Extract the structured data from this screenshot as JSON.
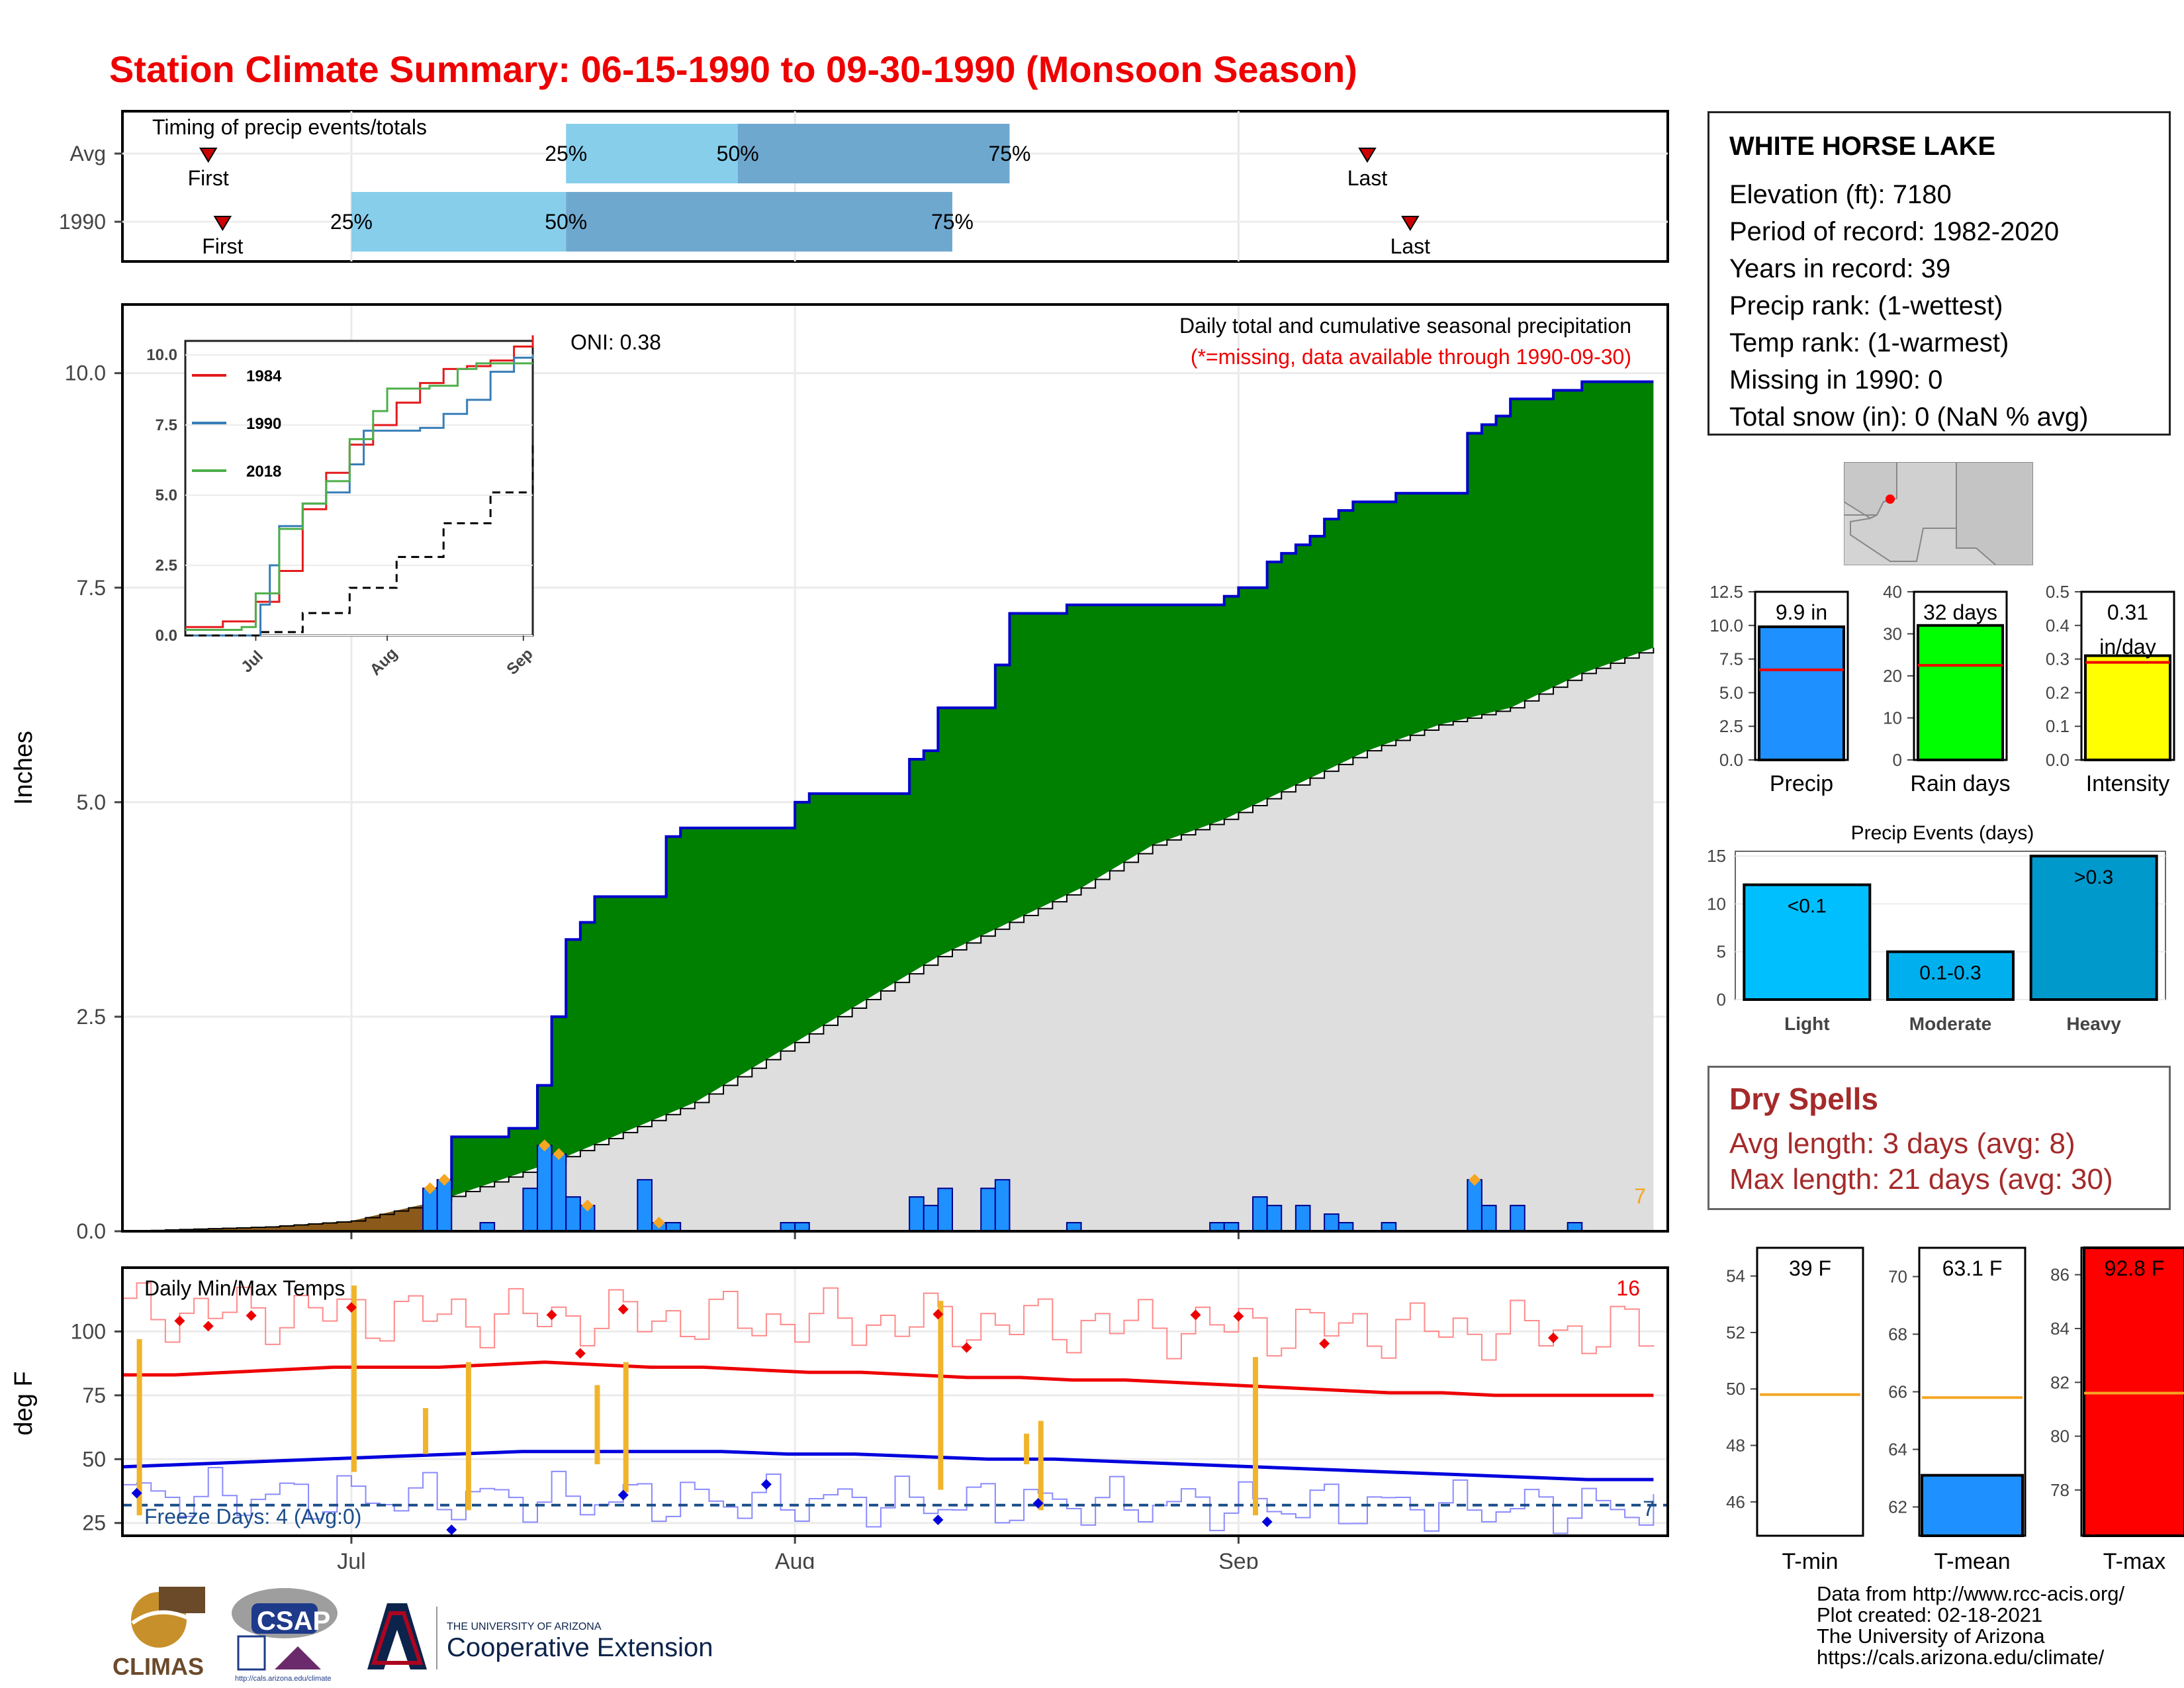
{
  "title": "Station Climate Summary: 06-15-1990 to 09-30-1990 (Monsoon Season)",
  "station": {
    "name": "WHITE HORSE LAKE",
    "lines": [
      "Elevation (ft): 7180",
      "Period of record: 1982-2020",
      "Years in record: 39",
      "Precip rank:  (1-wettest)",
      "Temp rank:  (1-warmest)",
      "Missing in 1990: 0",
      "Total snow (in): 0 (NaN % avg)"
    ]
  },
  "timing": {
    "title": "Timing of precip events/totals",
    "rows": [
      {
        "label": "Avg",
        "first_day": 6,
        "last_day": 87,
        "p25": 31,
        "p50": 43,
        "p75": 62,
        "first_label": "First",
        "last_label": "Last",
        "q25_label": "25%",
        "q50_label": "50%",
        "q75_label": "75%"
      },
      {
        "label": "1990",
        "first_day": 7,
        "last_day": 90,
        "p25": 16,
        "p50": 31,
        "p75": 58,
        "first_label": "First",
        "last_label": "Last",
        "q25_label": "25%",
        "q50_label": "50%",
        "q75_label": "75%"
      }
    ]
  },
  "main_panel": {
    "subtitle": "Daily total and cumulative seasonal precipitation",
    "missing_note": "(*=missing, data available through 1990-09-30)",
    "oni_label": "ONI: 0.38",
    "ylabel": "Inches",
    "corner_count": "7",
    "month_labels": [
      "Jul",
      "Aug",
      "Sep"
    ],
    "month_days": [
      16,
      47,
      78
    ],
    "days_total": 108
  },
  "inset": {
    "legend": [
      "1984",
      "1990",
      "2018"
    ],
    "month_labels": [
      "Jul",
      "Aug",
      "Sep"
    ],
    "yticks": [
      "0.0",
      "2.5",
      "5.0",
      "7.5",
      "10.0"
    ]
  },
  "temp_panel": {
    "title": "Daily Min/Max Temps",
    "ylabel": "deg F",
    "freeze_label": "Freeze Days: 4 (Avg:0)",
    "count_hot": "16",
    "count_cold": "7"
  },
  "chart_data": [
    {
      "type": "area",
      "title": "Daily total and cumulative seasonal precipitation",
      "ylabel": "Inches",
      "ylim": [
        0,
        10.8
      ],
      "x_start": "1990-06-15",
      "series": [
        {
          "name": "cumulative_1990",
          "points": [
            [
              0,
              0
            ],
            [
              21,
              0
            ],
            [
              22,
              0.5
            ],
            [
              23,
              1.1
            ],
            [
              26,
              1.1
            ],
            [
              27,
              1.2
            ],
            [
              28,
              1.2
            ],
            [
              29,
              1.7
            ],
            [
              30,
              2.5
            ],
            [
              31,
              3.4
            ],
            [
              32,
              3.6
            ],
            [
              33,
              3.9
            ],
            [
              37,
              3.9
            ],
            [
              38,
              4.6
            ],
            [
              39,
              4.7
            ],
            [
              46,
              4.7
            ],
            [
              47,
              5.0
            ],
            [
              48,
              5.1
            ],
            [
              54,
              5.1
            ],
            [
              55,
              5.5
            ],
            [
              56,
              5.6
            ],
            [
              57,
              6.1
            ],
            [
              60,
              6.1
            ],
            [
              61,
              6.6
            ],
            [
              62,
              7.2
            ],
            [
              65,
              7.2
            ],
            [
              66,
              7.3
            ],
            [
              76,
              7.3
            ],
            [
              77,
              7.4
            ],
            [
              78,
              7.5
            ],
            [
              79,
              7.5
            ],
            [
              80,
              7.8
            ],
            [
              81,
              7.9
            ],
            [
              82,
              8.0
            ],
            [
              83,
              8.1
            ],
            [
              84,
              8.3
            ],
            [
              85,
              8.4
            ],
            [
              86,
              8.5
            ],
            [
              87,
              8.5
            ],
            [
              88,
              8.5
            ],
            [
              89,
              8.6
            ],
            [
              93,
              8.6
            ],
            [
              94,
              9.3
            ],
            [
              95,
              9.4
            ],
            [
              96,
              9.5
            ],
            [
              97,
              9.7
            ],
            [
              100,
              9.8
            ],
            [
              101,
              9.8
            ],
            [
              102,
              9.9
            ],
            [
              107,
              9.9
            ]
          ]
        },
        {
          "name": "average",
          "points": [
            [
              0,
              0
            ],
            [
              10,
              0.05
            ],
            [
              16,
              0.12
            ],
            [
              22,
              0.35
            ],
            [
              30,
              0.8
            ],
            [
              40,
              1.5
            ],
            [
              47,
              2.2
            ],
            [
              52,
              2.7
            ],
            [
              57,
              3.2
            ],
            [
              62,
              3.6
            ],
            [
              67,
              4.0
            ],
            [
              72,
              4.5
            ],
            [
              77,
              4.8
            ],
            [
              82,
              5.2
            ],
            [
              87,
              5.6
            ],
            [
              92,
              5.9
            ],
            [
              97,
              6.1
            ],
            [
              102,
              6.5
            ],
            [
              107,
              6.8
            ]
          ]
        }
      ],
      "daily_bars": [
        [
          21,
          0.5
        ],
        [
          22,
          0.6
        ],
        [
          25,
          0.1
        ],
        [
          28,
          0.5
        ],
        [
          29,
          1.0
        ],
        [
          30,
          0.9
        ],
        [
          31,
          0.4
        ],
        [
          32,
          0.3
        ],
        [
          36,
          0.6
        ],
        [
          37,
          0.1
        ],
        [
          38,
          0.1
        ],
        [
          46,
          0.1
        ],
        [
          47,
          0.1
        ],
        [
          55,
          0.4
        ],
        [
          56,
          0.3
        ],
        [
          57,
          0.5
        ],
        [
          60,
          0.5
        ],
        [
          61,
          0.6
        ],
        [
          66,
          0.1
        ],
        [
          76,
          0.1
        ],
        [
          77,
          0.1
        ],
        [
          79,
          0.4
        ],
        [
          80,
          0.3
        ],
        [
          82,
          0.3
        ],
        [
          84,
          0.2
        ],
        [
          85,
          0.1
        ],
        [
          88,
          0.1
        ],
        [
          94,
          0.6
        ],
        [
          95,
          0.3
        ],
        [
          97,
          0.3
        ],
        [
          101,
          0.1
        ]
      ],
      "max_markers": [
        21,
        22,
        29,
        30,
        32,
        37,
        94
      ]
    },
    {
      "type": "line",
      "title": "",
      "xlabel": "",
      "ylabel": "",
      "x_months": [
        "Jul",
        "Aug",
        "Sep"
      ],
      "ylim": [
        0,
        10.5
      ],
      "series": [
        {
          "name": "1984",
          "color": "#e41a1c",
          "points": [
            [
              0,
              0.3
            ],
            [
              8,
              0.5
            ],
            [
              15,
              1.2
            ],
            [
              20,
              2.3
            ],
            [
              25,
              4.5
            ],
            [
              30,
              5.8
            ],
            [
              35,
              6.8
            ],
            [
              40,
              7.5
            ],
            [
              45,
              8.3
            ],
            [
              50,
              9.0
            ],
            [
              55,
              9.5
            ],
            [
              60,
              9.6
            ],
            [
              65,
              9.8
            ],
            [
              70,
              10.3
            ],
            [
              74,
              10.7
            ]
          ]
        },
        {
          "name": "1990",
          "color": "#377eb8",
          "points": [
            [
              0,
              0
            ],
            [
              13,
              0
            ],
            [
              16,
              1.1
            ],
            [
              18,
              2.5
            ],
            [
              20,
              3.9
            ],
            [
              25,
              4.7
            ],
            [
              30,
              5.1
            ],
            [
              35,
              6.1
            ],
            [
              38,
              7.3
            ],
            [
              50,
              7.4
            ],
            [
              55,
              7.9
            ],
            [
              60,
              8.4
            ],
            [
              65,
              9.4
            ],
            [
              70,
              9.9
            ],
            [
              74,
              10.0
            ]
          ]
        },
        {
          "name": "2018",
          "color": "#4daf4a",
          "points": [
            [
              0,
              0.2
            ],
            [
              12,
              0.3
            ],
            [
              15,
              1.5
            ],
            [
              20,
              3.8
            ],
            [
              25,
              4.7
            ],
            [
              30,
              5.5
            ],
            [
              35,
              7.0
            ],
            [
              40,
              8.0
            ],
            [
              43,
              8.8
            ],
            [
              48,
              8.8
            ],
            [
              52,
              8.9
            ],
            [
              58,
              9.5
            ],
            [
              62,
              9.7
            ],
            [
              74,
              9.7
            ]
          ]
        },
        {
          "name": "average",
          "color": "#000000",
          "points": [
            [
              0,
              0
            ],
            [
              16,
              0.12
            ],
            [
              25,
              0.8
            ],
            [
              35,
              1.7
            ],
            [
              45,
              2.8
            ],
            [
              55,
              4.0
            ],
            [
              65,
              5.1
            ],
            [
              74,
              6.8
            ]
          ]
        }
      ]
    },
    {
      "type": "line",
      "title": "Daily Min/Max Temps",
      "ylabel": "deg F",
      "ylim": [
        20,
        125
      ],
      "series": [
        {
          "name": "avg_max",
          "color": "#ee0000",
          "values": [
            83,
            83,
            84,
            85,
            86,
            86,
            86,
            87,
            88,
            87,
            86,
            86,
            85,
            84,
            84,
            83,
            82,
            82,
            81,
            81,
            80,
            79,
            78,
            77,
            76,
            76,
            75,
            75,
            75,
            75
          ]
        },
        {
          "name": "avg_min",
          "color": "#0000dd",
          "values": [
            47,
            48,
            49,
            50,
            51,
            52,
            53,
            53,
            53,
            53,
            52,
            52,
            51,
            50,
            50,
            49,
            48,
            47,
            46,
            45,
            44,
            43,
            42,
            42
          ]
        }
      ],
      "freeze_threshold": 32
    },
    {
      "type": "bar",
      "title": "",
      "categories": [
        "Precip",
        "Rain days",
        "Intensity"
      ],
      "values": [
        9.9,
        32,
        0.31
      ],
      "labels": [
        "9.9 in",
        "32 days",
        "0.31\nin/day"
      ],
      "avg": [
        6.7,
        22.5,
        0.29
      ],
      "ylims": [
        [
          0,
          12.5
        ],
        [
          0,
          40
        ],
        [
          0,
          0.5
        ]
      ]
    },
    {
      "type": "bar",
      "title": "Precip Events (days)",
      "categories": [
        "Light",
        "Moderate",
        "Heavy"
      ],
      "values": [
        12,
        5,
        15
      ],
      "labels": [
        "<0.1",
        "0.1-0.3",
        ">0.3"
      ],
      "ylim": [
        0,
        15.5
      ]
    },
    {
      "type": "bar",
      "title": "",
      "categories": [
        "T-min",
        "T-mean",
        "T-max"
      ],
      "values": [
        39,
        63.1,
        92.8
      ],
      "labels": [
        "39 F",
        "63.1 F",
        "92.8 F"
      ],
      "avg": [
        49.8,
        65.8,
        81.6
      ]
    }
  ],
  "dry_spells": {
    "title": "Dry Spells",
    "avg": "Avg length: 3 days (avg: 8)",
    "max": "Max length: 21 days (avg: 30)"
  },
  "credits": [
    "Data from http://www.rcc-acis.org/",
    "Plot created: 02-18-2021",
    "The University of Arizona",
    "https://cals.arizona.edu/climate/"
  ],
  "logos": {
    "climas": "CLIMAS",
    "csap": "CSAP",
    "csap_url": "http://cals.arizona.edu/climate",
    "ua_small": "THE UNIVERSITY OF ARIZONA",
    "ua_big": "Cooperative Extension"
  }
}
